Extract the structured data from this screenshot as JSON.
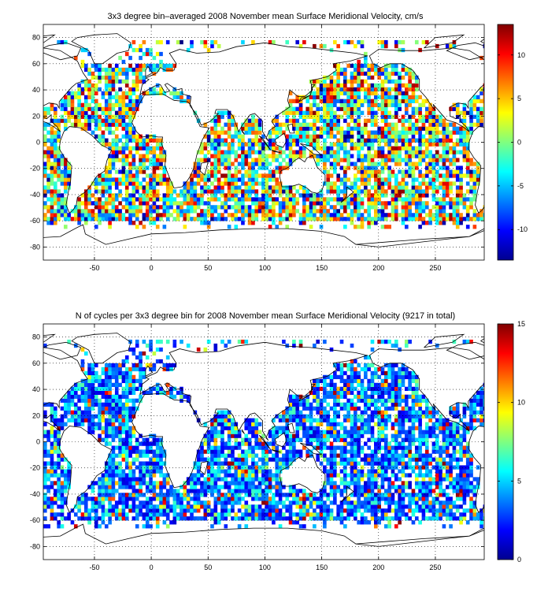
{
  "colormap": "jet",
  "chart_data": [
    {
      "type": "heatmap",
      "title": "3x3 degree bin–averaged 2008 November mean Surface Meridional Velocity, cm/s",
      "xlabel": "",
      "ylabel": "",
      "xlim": [
        -95,
        293
      ],
      "ylim": [
        -90,
        90
      ],
      "xticks": [
        -50,
        0,
        50,
        100,
        150,
        200,
        250
      ],
      "yticks": [
        -80,
        -60,
        -40,
        -20,
        0,
        20,
        40,
        60,
        80
      ],
      "bin_size_deg": 3,
      "grid": true,
      "colorbar": {
        "range": [
          -13.5,
          13.5
        ],
        "ticks": [
          -10,
          -5,
          0,
          5,
          10
        ]
      },
      "seed": 11
    },
    {
      "type": "heatmap",
      "title": "N of cycles per 3x3 degree bin for 2008 November mean Surface Meridional Velocity (9217 in total)",
      "xlabel": "",
      "ylabel": "",
      "xlim": [
        -95,
        293
      ],
      "ylim": [
        -90,
        90
      ],
      "xticks": [
        -50,
        0,
        50,
        100,
        150,
        200,
        250
      ],
      "yticks": [
        -80,
        -60,
        -40,
        -20,
        0,
        20,
        40,
        60,
        80
      ],
      "bin_size_deg": 3,
      "grid": true,
      "colorbar": {
        "range": [
          0,
          15
        ],
        "ticks": [
          0,
          5,
          10,
          15
        ]
      },
      "seed": 29
    }
  ]
}
